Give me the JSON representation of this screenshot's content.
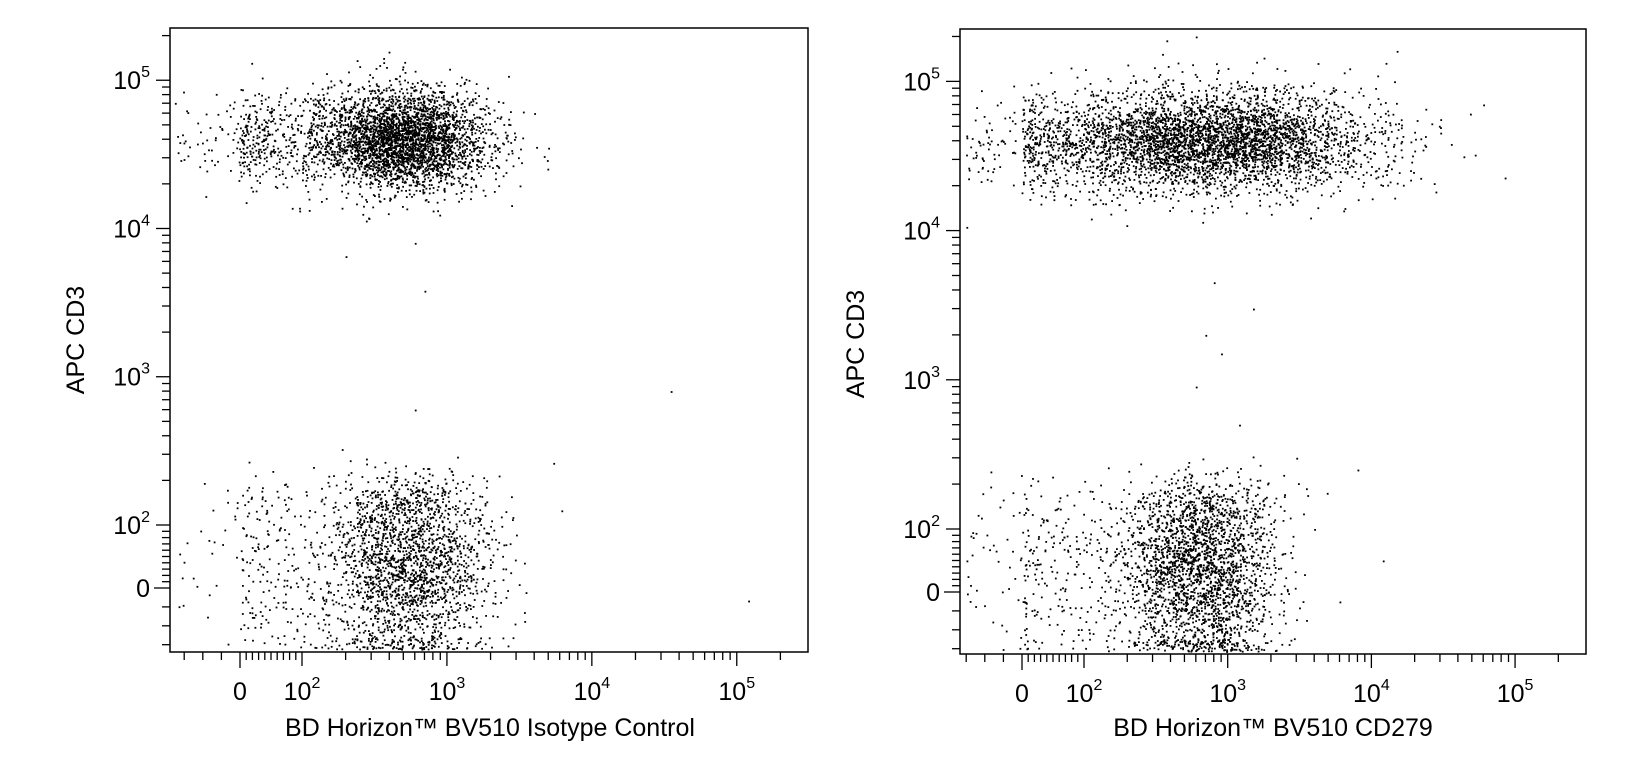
{
  "chart_data": [
    {
      "type": "scatter",
      "xlabel": "BD Horizon™ BV510 Isotype Control",
      "ylabel": "APC CD3",
      "x_scale": "biexponential",
      "y_scale": "biexponential",
      "xlim": [
        -300,
        250000
      ],
      "ylim": [
        -120,
        250000
      ],
      "x_ticks": [
        {
          "value": 0,
          "base": "0",
          "exp": ""
        },
        {
          "value": 100,
          "base": "10",
          "exp": "2"
        },
        {
          "value": 1000,
          "base": "10",
          "exp": "3"
        },
        {
          "value": 10000,
          "base": "10",
          "exp": "4"
        },
        {
          "value": 100000,
          "base": "10",
          "exp": "5"
        }
      ],
      "y_ticks": [
        {
          "value": 0,
          "base": "0",
          "exp": ""
        },
        {
          "value": 100,
          "base": "10",
          "exp": "2"
        },
        {
          "value": 1000,
          "base": "10",
          "exp": "3"
        },
        {
          "value": 10000,
          "base": "10",
          "exp": "4"
        },
        {
          "value": 100000,
          "base": "10",
          "exp": "5"
        }
      ],
      "populations": [
        {
          "name": "",
          "x_median": 500,
          "y_median": 40000,
          "spread_x_decades": 0.3,
          "spread_y_decades": 0.17,
          "approx_events": 3800
        },
        {
          "name": "",
          "x_median": 550,
          "y_median": 40,
          "spread_x_decades": 0.28,
          "spread_y": 80,
          "approx_events": 2400
        }
      ],
      "outliers": [
        [
          4000,
          60000
        ],
        [
          5000,
          35000
        ],
        [
          35000,
          800
        ],
        [
          120000,
          -20
        ],
        [
          600,
          8000
        ],
        [
          700,
          3800
        ],
        [
          200,
          6500
        ],
        [
          600,
          600
        ]
      ],
      "grid": false
    },
    {
      "type": "scatter",
      "xlabel": "BD Horizon™ BV510 CD279",
      "ylabel": "APC CD3",
      "x_scale": "biexponential",
      "y_scale": "biexponential",
      "xlim": [
        -300,
        250000
      ],
      "ylim": [
        -120,
        250000
      ],
      "x_ticks": [
        {
          "value": 0,
          "base": "0",
          "exp": ""
        },
        {
          "value": 100,
          "base": "10",
          "exp": "2"
        },
        {
          "value": 1000,
          "base": "10",
          "exp": "3"
        },
        {
          "value": 10000,
          "base": "10",
          "exp": "4"
        },
        {
          "value": 100000,
          "base": "10",
          "exp": "5"
        }
      ],
      "y_ticks": [
        {
          "value": 0,
          "base": "0",
          "exp": ""
        },
        {
          "value": 100,
          "base": "10",
          "exp": "2"
        },
        {
          "value": 1000,
          "base": "10",
          "exp": "3"
        },
        {
          "value": 10000,
          "base": "10",
          "exp": "4"
        },
        {
          "value": 100000,
          "base": "10",
          "exp": "5"
        }
      ],
      "populations": [
        {
          "name": "",
          "x_median": 800,
          "y_median": 40000,
          "spread_x_decades": 0.55,
          "spread_y_decades": 0.17,
          "approx_events": 4500
        },
        {
          "name": "",
          "x_median": 650,
          "y_median": 40,
          "spread_x_decades": 0.26,
          "spread_y": 80,
          "approx_events": 2800
        }
      ],
      "outliers": [
        [
          600,
          200000
        ],
        [
          15000,
          160000
        ],
        [
          60000,
          70000
        ],
        [
          1500,
          3000
        ],
        [
          700,
          2000
        ],
        [
          600,
          900
        ],
        [
          800,
          4500
        ],
        [
          3000,
          300
        ],
        [
          8000,
          250
        ],
        [
          12000,
          50
        ],
        [
          6000,
          -15
        ],
        [
          4000,
          100
        ],
        [
          1200,
          500
        ],
        [
          900,
          1500
        ]
      ],
      "grid": false
    }
  ]
}
